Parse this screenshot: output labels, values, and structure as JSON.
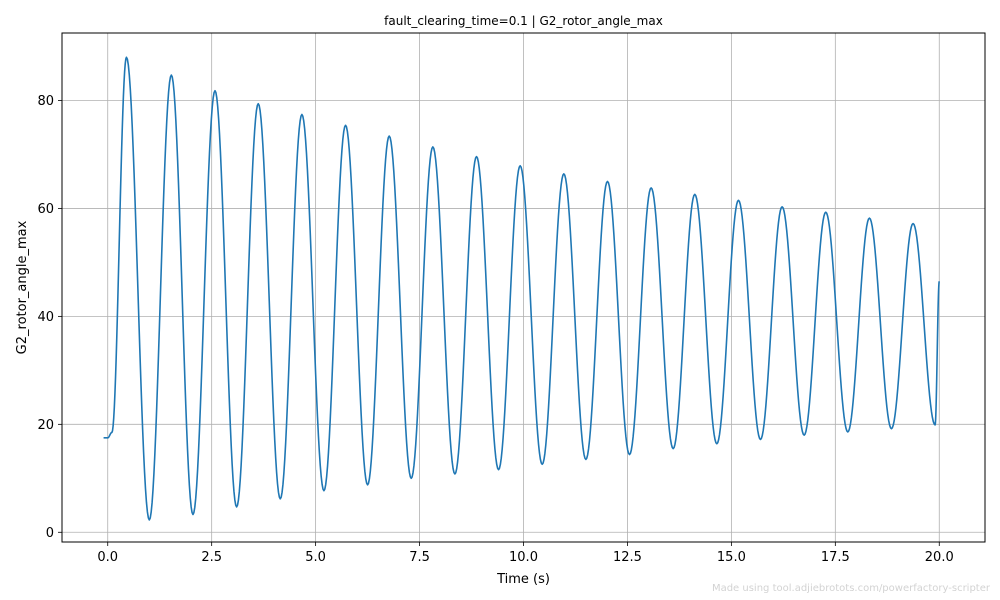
{
  "chart_data": {
    "type": "line",
    "title": "fault_clearing_time=0.1 | G2_rotor_angle_max",
    "xlabel": "Time (s)",
    "ylabel": "G2_rotor_angle_max",
    "xlim": [
      -1.1,
      21.1
    ],
    "ylim": [
      -1.8,
      92.5
    ],
    "xticks": [
      0.0,
      2.5,
      5.0,
      7.5,
      10.0,
      12.5,
      15.0,
      17.5,
      20.0
    ],
    "xtick_labels": [
      "0.0",
      "2.5",
      "5.0",
      "7.5",
      "10.0",
      "12.5",
      "15.0",
      "17.5",
      "20.0"
    ],
    "yticks": [
      0,
      20,
      40,
      60,
      80
    ],
    "ytick_labels": [
      "0",
      "20",
      "40",
      "60",
      "80"
    ],
    "grid": true,
    "line_color": "#1f77b4",
    "series": [
      {
        "x": [
          -0.1,
          0.0,
          0.1,
          0.45,
          1.0,
          1.53,
          2.05,
          2.58,
          3.1,
          3.62,
          4.15,
          4.67,
          5.2,
          5.72,
          6.25,
          6.77,
          7.3,
          7.82,
          8.35,
          8.87,
          9.4,
          9.92,
          10.45,
          10.97,
          11.5,
          12.02,
          12.55,
          13.07,
          13.6,
          14.12,
          14.65,
          15.17,
          15.7,
          16.22,
          16.75,
          17.27,
          17.8,
          18.32,
          18.85,
          19.37,
          19.9,
          20.0
        ],
        "y": [
          17.5,
          17.5,
          18.5,
          88.0,
          2.3,
          84.7,
          3.3,
          81.8,
          4.7,
          79.4,
          6.2,
          77.4,
          7.7,
          75.4,
          8.8,
          73.4,
          10.0,
          71.4,
          10.8,
          69.6,
          11.6,
          67.9,
          12.6,
          66.4,
          13.5,
          65.0,
          14.4,
          63.8,
          15.5,
          62.6,
          16.4,
          61.5,
          17.2,
          60.3,
          18.0,
          59.3,
          18.6,
          58.2,
          19.2,
          57.2,
          19.9,
          46.5
        ]
      }
    ]
  },
  "watermark": "Made using tool.adjiebrotots.com/powerfactory-scripter"
}
